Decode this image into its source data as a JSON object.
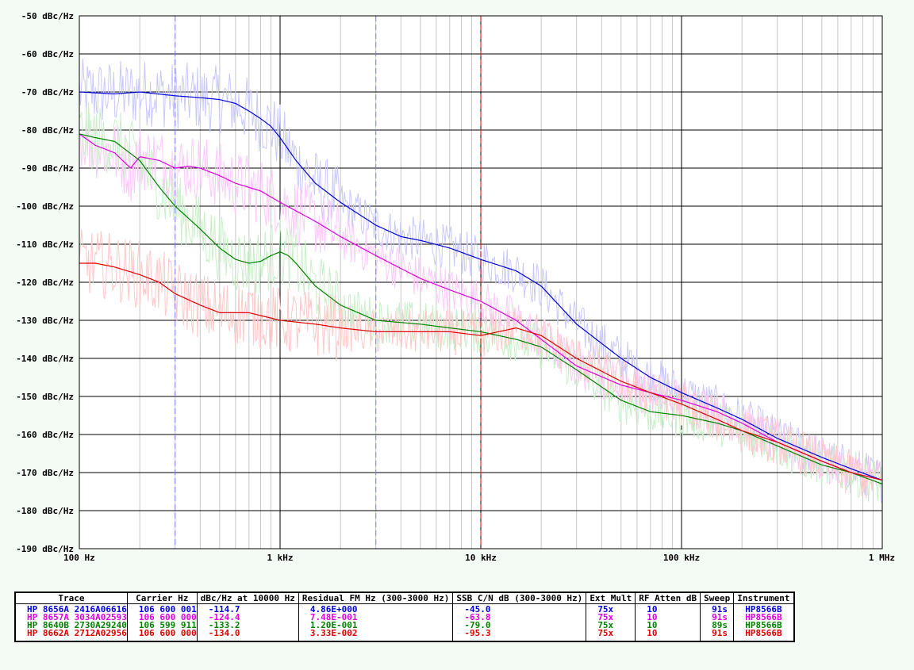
{
  "chart_data": {
    "type": "line",
    "title": "",
    "xlabel": "",
    "ylabel": "",
    "x_scale": "log",
    "xlim": [
      100,
      1000000
    ],
    "ylim": [
      -190,
      -50
    ],
    "x_ticks": [
      {
        "value": 100,
        "label": "100 Hz"
      },
      {
        "value": 1000,
        "label": "1 kHz"
      },
      {
        "value": 10000,
        "label": "10 kHz"
      },
      {
        "value": 100000,
        "label": "100 kHz"
      },
      {
        "value": 1000000,
        "label": "1 MHz"
      }
    ],
    "y_ticks": [
      {
        "value": -50,
        "label": "-50 dBc/Hz"
      },
      {
        "value": -60,
        "label": "-60 dBc/Hz"
      },
      {
        "value": -70,
        "label": "-70 dBc/Hz"
      },
      {
        "value": -80,
        "label": "-80 dBc/Hz"
      },
      {
        "value": -90,
        "label": "-90 dBc/Hz"
      },
      {
        "value": -100,
        "label": "-100 dBc/Hz"
      },
      {
        "value": -110,
        "label": "-110 dBc/Hz"
      },
      {
        "value": -120,
        "label": "-120 dBc/Hz"
      },
      {
        "value": -130,
        "label": "-130 dBc/Hz"
      },
      {
        "value": -140,
        "label": "-140 dBc/Hz"
      },
      {
        "value": -150,
        "label": "-150 dBc/Hz"
      },
      {
        "value": -160,
        "label": "-160 dBc/Hz"
      },
      {
        "value": -170,
        "label": "-170 dBc/Hz"
      },
      {
        "value": -180,
        "label": "-180 dBc/Hz"
      },
      {
        "value": -190,
        "label": "-190 dBc/Hz"
      }
    ],
    "grid": true,
    "markers": [
      {
        "x": 300,
        "color": "#8080ff"
      },
      {
        "x": 3000,
        "color": "#8080ff"
      },
      {
        "x": 10000,
        "color": "#e00000"
      }
    ],
    "series": [
      {
        "color": "#0000e0",
        "raw_color": "#c8c8ff",
        "x": [
          100,
          150,
          200,
          300,
          400,
          500,
          600,
          700,
          800,
          900,
          1000,
          1200,
          1500,
          2000,
          3000,
          4000,
          5000,
          7000,
          10000,
          15000,
          20000,
          30000,
          50000,
          70000,
          100000,
          150000,
          200000,
          300000,
          500000,
          700000,
          1000000
        ],
        "values": [
          -70,
          -70.5,
          -70,
          -71,
          -71.5,
          -72,
          -73,
          -75,
          -77,
          -79,
          -82,
          -88,
          -94,
          -99,
          -105,
          -108,
          -109,
          -111,
          -114,
          -117,
          -121,
          -131,
          -140,
          -145,
          -149,
          -153,
          -156,
          -161,
          -166,
          -169,
          -172
        ]
      },
      {
        "color": "#e000e0",
        "raw_color": "#ffc8ff",
        "x": [
          100,
          120,
          150,
          180,
          200,
          250,
          300,
          350,
          400,
          500,
          600,
          800,
          1000,
          1500,
          2000,
          3000,
          5000,
          7000,
          10000,
          15000,
          20000,
          30000,
          50000,
          70000,
          100000,
          150000,
          200000,
          300000,
          500000,
          700000,
          1000000
        ],
        "values": [
          -81,
          -84,
          -86,
          -90,
          -87,
          -88,
          -90,
          -89.5,
          -90,
          -92,
          -94,
          -96,
          -99,
          -104,
          -108,
          -113,
          -119,
          -122,
          -125,
          -130,
          -135,
          -142,
          -147,
          -149,
          -151,
          -154,
          -157,
          -162,
          -167,
          -170,
          -172
        ]
      },
      {
        "color": "#008000",
        "raw_color": "#c8f0c8",
        "x": [
          100,
          120,
          150,
          200,
          250,
          300,
          400,
          500,
          600,
          700,
          800,
          900,
          1000,
          1100,
          1200,
          1500,
          2000,
          3000,
          5000,
          7000,
          10000,
          15000,
          20000,
          30000,
          50000,
          70000,
          100000,
          150000,
          200000,
          300000,
          500000,
          700000,
          1000000
        ],
        "values": [
          -81,
          -82,
          -83,
          -88,
          -95,
          -100,
          -106,
          -111,
          -114,
          -115,
          -114.5,
          -113,
          -112,
          -113,
          -115,
          -121,
          -126,
          -130,
          -131,
          -132,
          -133,
          -135,
          -137,
          -143,
          -151,
          -154,
          -155,
          -157,
          -159,
          -163,
          -168,
          -170,
          -173
        ]
      },
      {
        "color": "#e00000",
        "raw_color": "#ffc8c8",
        "x": [
          100,
          120,
          150,
          200,
          250,
          300,
          400,
          500,
          700,
          1000,
          1500,
          2000,
          3000,
          5000,
          7000,
          10000,
          15000,
          20000,
          30000,
          50000,
          70000,
          100000,
          150000,
          200000,
          300000,
          500000,
          700000,
          1000000
        ],
        "values": [
          -115,
          -115,
          -116,
          -118,
          -120,
          -123,
          -126,
          -128,
          -128,
          -130,
          -131,
          -132,
          -133,
          -133,
          -133,
          -134,
          -132,
          -134,
          -140,
          -146,
          -149,
          -152,
          -156,
          -159,
          -162,
          -167,
          -170,
          -172
        ]
      }
    ]
  },
  "legend": {
    "headers": [
      "Trace",
      "Carrier Hz",
      "dBc/Hz at 10000 Hz",
      "Residual FM Hz (300-3000 Hz)",
      "SSB C/N dB (300-3000 Hz)",
      "Ext Mult",
      "RF Atten dB",
      "Sweep",
      "Instrument"
    ],
    "rows": [
      {
        "color": "#0000e0",
        "cells": [
          "HP 8656A 2416A06616",
          "106 600 001",
          "-114.7",
          "4.86E+000",
          "-45.0",
          "75x",
          "10",
          "91s",
          "HP8566B"
        ]
      },
      {
        "color": "#e000e0",
        "cells": [
          "HP 8657A 3034A02593",
          "106 600 000",
          "-124.4",
          "7.48E-001",
          "-63.8",
          "75x",
          "10",
          "91s",
          "HP8566B"
        ]
      },
      {
        "color": "#008000",
        "cells": [
          "HP 8640B 2730A29240",
          "106 599 911",
          "-133.2",
          "1.20E-001",
          "-79.0",
          "75x",
          "10",
          "89s",
          "HP8566B"
        ]
      },
      {
        "color": "#e00000",
        "cells": [
          "HP 8662A 2712A02956",
          "106 600 000",
          "-134.0",
          "3.33E-002",
          "-95.3",
          "75x",
          "10",
          "91s",
          "HP8566B"
        ]
      }
    ]
  }
}
